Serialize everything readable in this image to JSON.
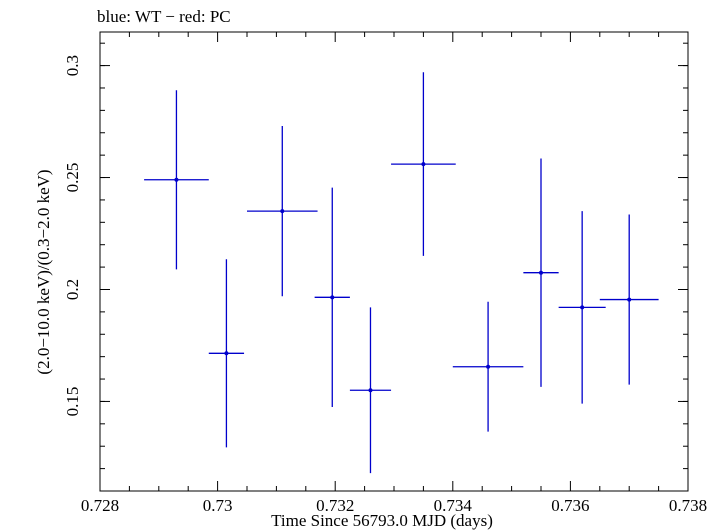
{
  "chart_data": {
    "type": "scatter",
    "title": "blue: WT − red: PC",
    "xlabel": "Time Since 56793.0 MJD (days)",
    "ylabel": "(2.0−10.0 keV)/(0.3−2.0 keV)",
    "xlim": [
      0.728,
      0.738
    ],
    "ylim": [
      0.11,
      0.315
    ],
    "xticks": [
      0.728,
      0.73,
      0.732,
      0.734,
      0.736,
      0.738
    ],
    "xtick_labels": [
      "0.728",
      "0.73",
      "0.732",
      "0.734",
      "0.736",
      "0.738"
    ],
    "yticks": [
      0.15,
      0.2,
      0.25,
      0.3
    ],
    "ytick_labels": [
      "0.15",
      "0.2",
      "0.25",
      "0.3"
    ],
    "series": [
      {
        "name": "WT",
        "color": "#0000cc",
        "points": [
          {
            "x": 0.7293,
            "xerr": 0.00055,
            "y": 0.249,
            "yerr": 0.04
          },
          {
            "x": 0.73015,
            "xerr": 0.0003,
            "y": 0.1715,
            "yerr": 0.042
          },
          {
            "x": 0.7311,
            "xerr": 0.0006,
            "y": 0.235,
            "yerr": 0.038
          },
          {
            "x": 0.73195,
            "xerr": 0.0003,
            "y": 0.1965,
            "yerr": 0.049
          },
          {
            "x": 0.7326,
            "xerr": 0.00035,
            "y": 0.155,
            "yerr": 0.037
          },
          {
            "x": 0.7335,
            "xerr": 0.00055,
            "y": 0.256,
            "yerr": 0.041
          },
          {
            "x": 0.7346,
            "xerr": 0.0006,
            "y": 0.1655,
            "yerr": 0.029
          },
          {
            "x": 0.7355,
            "xerr": 0.0003,
            "y": 0.2075,
            "yerr": 0.051
          },
          {
            "x": 0.7362,
            "xerr": 0.0004,
            "y": 0.192,
            "yerr": 0.043
          },
          {
            "x": 0.737,
            "xerr": 0.0005,
            "y": 0.1955,
            "yerr": 0.038
          }
        ]
      }
    ]
  }
}
